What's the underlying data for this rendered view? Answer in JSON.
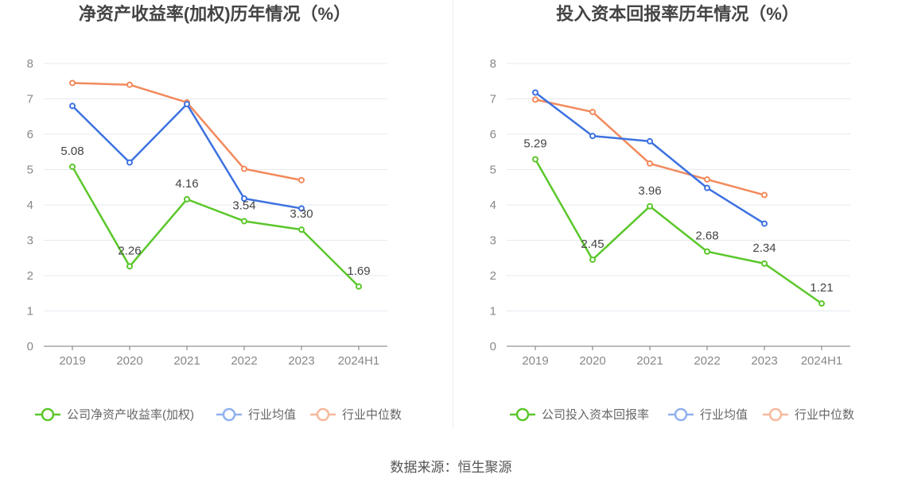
{
  "source": "数据来源：恒生聚源",
  "chart_data": [
    {
      "type": "line",
      "title": "净资产收益率(加权)历年情况（%）",
      "xlabel": "",
      "ylabel": "",
      "categories": [
        "2019",
        "2020",
        "2021",
        "2022",
        "2023",
        "2024H1"
      ],
      "ylim": [
        0,
        8
      ],
      "yticks": [
        "0",
        "1",
        "2",
        "3",
        "4",
        "5",
        "6",
        "7",
        "8"
      ],
      "grid": true,
      "legend": "bottom",
      "series": [
        {
          "name": "公司净资产收益率(加权)",
          "color": "#5bc72b",
          "values": [
            5.08,
            2.26,
            4.16,
            3.54,
            3.3,
            1.69
          ],
          "labels": [
            "5.08",
            "2.26",
            "4.16",
            "3.54",
            "3.30",
            "1.69"
          ]
        },
        {
          "name": "行业均值",
          "color": "#3d72e0",
          "values": [
            6.8,
            5.2,
            6.85,
            4.18,
            3.9,
            null
          ]
        },
        {
          "name": "行业中位数",
          "color": "#f28a5c",
          "values": [
            7.45,
            7.4,
            6.9,
            5.02,
            4.7,
            null
          ]
        }
      ]
    },
    {
      "type": "line",
      "title": "投入资本回报率历年情况（%）",
      "xlabel": "",
      "ylabel": "",
      "categories": [
        "2019",
        "2020",
        "2021",
        "2022",
        "2023",
        "2024H1"
      ],
      "ylim": [
        0,
        8
      ],
      "yticks": [
        "0",
        "1",
        "2",
        "3",
        "4",
        "5",
        "6",
        "7",
        "8"
      ],
      "grid": true,
      "legend": "bottom",
      "series": [
        {
          "name": "公司投入资本回报率",
          "color": "#5bc72b",
          "values": [
            5.29,
            2.45,
            3.96,
            2.68,
            2.34,
            1.21
          ],
          "labels": [
            "5.29",
            "2.45",
            "3.96",
            "2.68",
            "2.34",
            "1.21"
          ]
        },
        {
          "name": "行业均值",
          "color": "#3d72e0",
          "values": [
            7.18,
            5.95,
            5.8,
            4.48,
            3.47,
            null
          ]
        },
        {
          "name": "行业中位数",
          "color": "#f28a5c",
          "values": [
            6.98,
            6.63,
            5.17,
            4.72,
            4.28,
            null
          ]
        }
      ]
    }
  ]
}
